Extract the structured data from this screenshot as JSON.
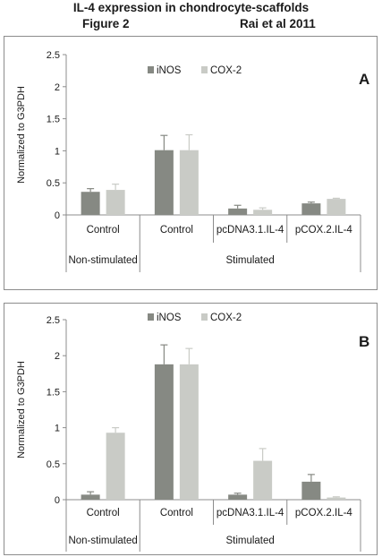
{
  "header": {
    "title": "IL-4 expression in chondrocyte-scaffolds",
    "figure": "Figure 2",
    "reference": "Rai et al 2011"
  },
  "colors": {
    "iNOS": "#868983",
    "COX-2": "#c9cbc6",
    "axis": "#8c8c8c"
  },
  "chart_data": [
    {
      "type": "bar",
      "panel_label": "A",
      "ylabel": "Normalized to G3PDH",
      "ylim": [
        0,
        2.5
      ],
      "yticks": [
        "0",
        "0.5",
        "1",
        "1.5",
        "2",
        "2.5"
      ],
      "legend": [
        "iNOS",
        "COX-2"
      ],
      "legend_position": "top-center",
      "grid": false,
      "categories": [
        "Control",
        "Control",
        "pcDNA3.1.IL-4",
        "pCOX.2.IL-4"
      ],
      "groups": [
        {
          "label": "Non-stimulated",
          "span": [
            0,
            0
          ]
        },
        {
          "label": "Stimulated",
          "span": [
            1,
            3
          ]
        }
      ],
      "series": [
        {
          "name": "iNOS",
          "values": [
            0.36,
            1.01,
            0.1,
            0.18
          ],
          "errors": [
            0.05,
            0.23,
            0.05,
            0.02
          ]
        },
        {
          "name": "COX-2",
          "values": [
            0.39,
            1.01,
            0.08,
            0.25
          ],
          "errors": [
            0.09,
            0.24,
            0.03,
            0.01
          ]
        }
      ]
    },
    {
      "type": "bar",
      "panel_label": "B",
      "ylabel": "Normalized to G3PDH",
      "ylim": [
        0,
        2.5
      ],
      "yticks": [
        "0",
        "0.5",
        "1",
        "1.5",
        "2",
        "2.5"
      ],
      "legend": [
        "iNOS",
        "COX-2"
      ],
      "legend_position": "top-center",
      "grid": false,
      "categories": [
        "Control",
        "Control",
        "pcDNA3.1.IL-4",
        "pCOX.2.IL-4"
      ],
      "groups": [
        {
          "label": "Non-stimulated",
          "span": [
            0,
            0
          ]
        },
        {
          "label": "Stimulated",
          "span": [
            1,
            3
          ]
        }
      ],
      "series": [
        {
          "name": "iNOS",
          "values": [
            0.07,
            1.88,
            0.07,
            0.25
          ],
          "errors": [
            0.04,
            0.27,
            0.02,
            0.1
          ]
        },
        {
          "name": "COX-2",
          "values": [
            0.93,
            1.88,
            0.54,
            0.03
          ],
          "errors": [
            0.07,
            0.22,
            0.17,
            0.01
          ]
        }
      ]
    }
  ]
}
